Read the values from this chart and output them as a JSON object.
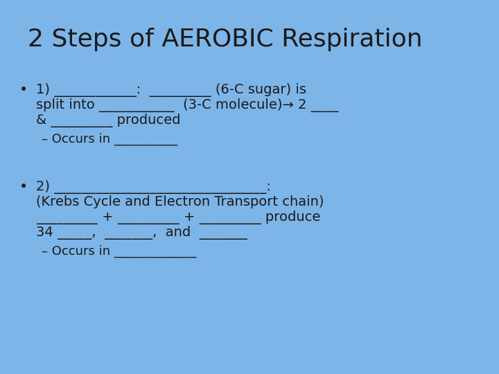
{
  "background_color": "#7EB5E8",
  "title": "2 Steps of AEROBIC Respiration",
  "title_fontsize": 26,
  "body_fontsize": 14,
  "sub_fontsize": 13,
  "font_family": "DejaVu Sans",
  "text_color": "#1a1a1a",
  "bullet1_lines": [
    "1) ____________:  _________ (6-C sugar) is",
    "split into ___________  (3-C molecule)→ 2 ____",
    "& _________ produced"
  ],
  "bullet1_sub": "– Occurs in __________",
  "bullet2_lines": [
    "2) _______________________________:",
    "(Krebs Cycle and Electron Transport chain)",
    "_________ + _________ + _________ produce",
    "34 _____,  _______,  and  _______"
  ],
  "bullet2_sub": "– Occurs in _____________"
}
